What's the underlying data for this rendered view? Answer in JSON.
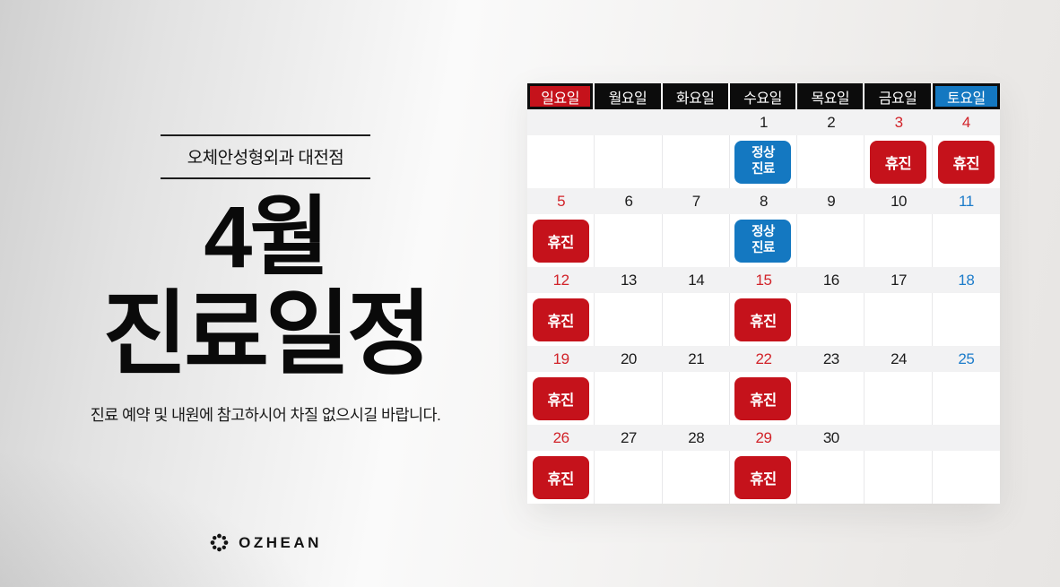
{
  "colors": {
    "red": "#c5121b",
    "blue": "#1478c1",
    "date_red": "#d22329",
    "date_blue": "#1d7cca",
    "header_black": "#0c0c0c",
    "date_row_bg": "#f2f2f3"
  },
  "left_panel": {
    "clinic_label": "오체안성형외과 대전점",
    "title_line1": "4월",
    "title_line2": "진료일정",
    "subtitle": "진료 예약 및 내원에 참고하시어 차질 없으시길 바랍니다.",
    "logo_text": "OZHEAN",
    "logo_icon": "dot-flower-icon"
  },
  "calendar": {
    "weekday_headers": [
      {
        "label": "일요일",
        "style": "sunday"
      },
      {
        "label": "월요일",
        "style": "weekday"
      },
      {
        "label": "화요일",
        "style": "weekday"
      },
      {
        "label": "수요일",
        "style": "weekday"
      },
      {
        "label": "목요일",
        "style": "weekday"
      },
      {
        "label": "금요일",
        "style": "weekday"
      },
      {
        "label": "토요일",
        "style": "saturday"
      }
    ],
    "badge_defs": {
      "closed": {
        "label": "휴진",
        "lines": [
          "휴진"
        ]
      },
      "open": {
        "label": "정상진료",
        "lines": [
          "정상",
          "진료"
        ]
      }
    },
    "weeks": [
      [
        {
          "day": ""
        },
        {
          "day": ""
        },
        {
          "day": ""
        },
        {
          "day": "1",
          "color": "black",
          "badge": "open"
        },
        {
          "day": "2",
          "color": "black"
        },
        {
          "day": "3",
          "color": "red",
          "badge": "closed"
        },
        {
          "day": "4",
          "color": "red",
          "badge": "closed"
        }
      ],
      [
        {
          "day": "5",
          "color": "red",
          "badge": "closed"
        },
        {
          "day": "6",
          "color": "black"
        },
        {
          "day": "7",
          "color": "black"
        },
        {
          "day": "8",
          "color": "black",
          "badge": "open"
        },
        {
          "day": "9",
          "color": "black"
        },
        {
          "day": "10",
          "color": "black"
        },
        {
          "day": "11",
          "color": "blue"
        }
      ],
      [
        {
          "day": "12",
          "color": "red",
          "badge": "closed"
        },
        {
          "day": "13",
          "color": "black"
        },
        {
          "day": "14",
          "color": "black"
        },
        {
          "day": "15",
          "color": "red",
          "badge": "closed"
        },
        {
          "day": "16",
          "color": "black"
        },
        {
          "day": "17",
          "color": "black"
        },
        {
          "day": "18",
          "color": "blue"
        }
      ],
      [
        {
          "day": "19",
          "color": "red",
          "badge": "closed"
        },
        {
          "day": "20",
          "color": "black"
        },
        {
          "day": "21",
          "color": "black"
        },
        {
          "day": "22",
          "color": "red",
          "badge": "closed"
        },
        {
          "day": "23",
          "color": "black"
        },
        {
          "day": "24",
          "color": "black"
        },
        {
          "day": "25",
          "color": "blue"
        }
      ],
      [
        {
          "day": "26",
          "color": "red",
          "badge": "closed"
        },
        {
          "day": "27",
          "color": "black"
        },
        {
          "day": "28",
          "color": "black"
        },
        {
          "day": "29",
          "color": "red",
          "badge": "closed"
        },
        {
          "day": "30",
          "color": "black"
        },
        {
          "day": ""
        },
        {
          "day": ""
        }
      ]
    ]
  }
}
